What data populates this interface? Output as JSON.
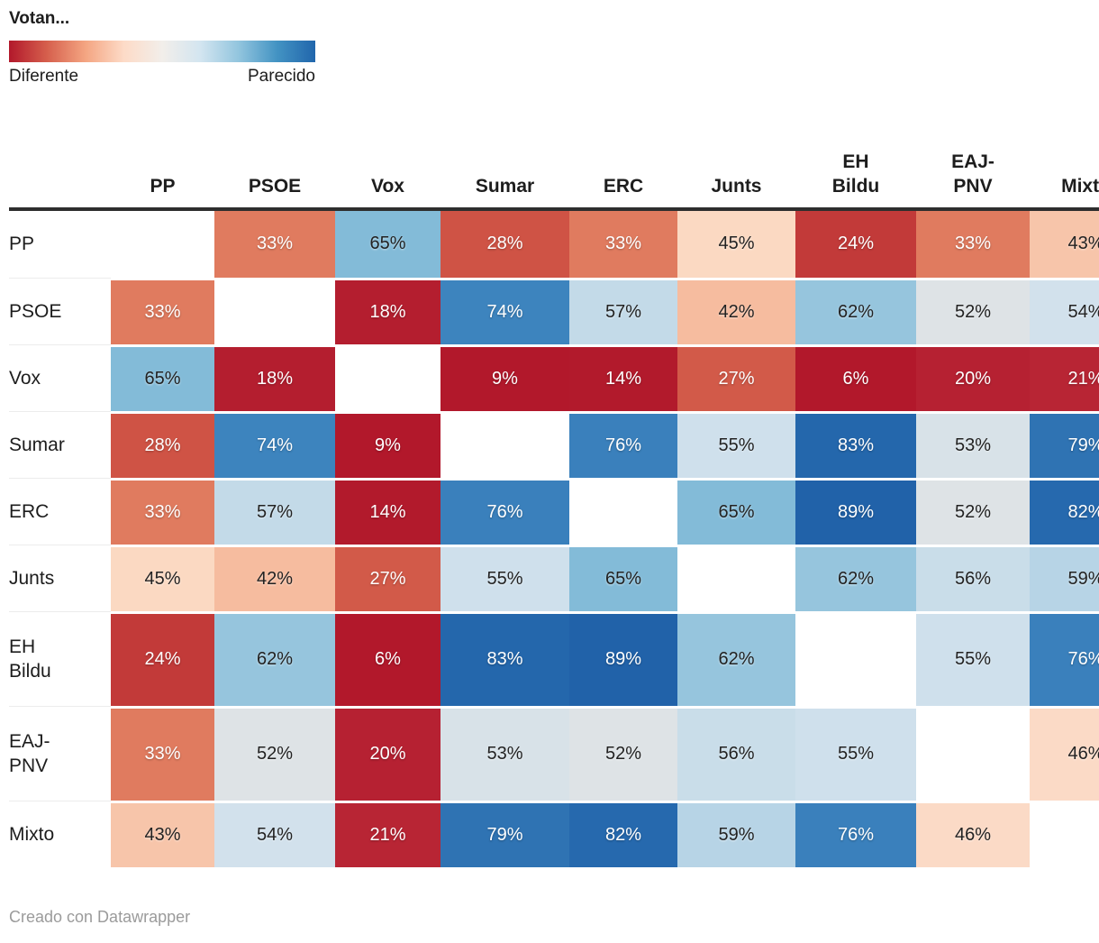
{
  "legend": {
    "title": "Votan...",
    "left_label": "Diferente",
    "right_label": "Parecido"
  },
  "table_display": {
    "columns": [
      "PP",
      "PSOE",
      "Vox",
      "Sumar",
      "ERC",
      "Junts",
      "EH\nBildu",
      "EAJ-\nPNV",
      "Mixto"
    ],
    "row_labels": [
      "PP",
      "PSOE",
      "Vox",
      "Sumar",
      "ERC",
      "Junts",
      "EH\nBildu",
      "EAJ-\nPNV",
      "Mixto"
    ]
  },
  "footer": {
    "credit": "Creado con Datawrapper"
  },
  "chart_data": {
    "type": "heatmap",
    "title": "Votan...",
    "unit": "%",
    "categories": [
      "PP",
      "PSOE",
      "Vox",
      "Sumar",
      "ERC",
      "Junts",
      "EH Bildu",
      "EAJ-PNV",
      "Mixto"
    ],
    "matrix": [
      [
        null,
        33,
        65,
        28,
        33,
        45,
        24,
        33,
        43
      ],
      [
        33,
        null,
        18,
        74,
        57,
        42,
        62,
        52,
        54
      ],
      [
        65,
        18,
        null,
        9,
        14,
        27,
        6,
        20,
        21
      ],
      [
        28,
        74,
        9,
        null,
        76,
        55,
        83,
        53,
        79
      ],
      [
        33,
        57,
        14,
        76,
        null,
        65,
        89,
        52,
        82
      ],
      [
        45,
        42,
        27,
        55,
        65,
        null,
        62,
        56,
        59
      ],
      [
        24,
        62,
        6,
        83,
        89,
        62,
        null,
        55,
        76
      ],
      [
        33,
        52,
        20,
        53,
        52,
        56,
        55,
        null,
        46
      ],
      [
        43,
        54,
        21,
        79,
        82,
        59,
        76,
        46,
        null
      ]
    ],
    "diagonal": "empty",
    "legend": {
      "style": "continuous-gradient",
      "orientation": "horizontal",
      "min_label": "Diferente",
      "max_label": "Parecido"
    },
    "color_scale": {
      "palette": "RdBu diverging (red = diferente, blue = parecido)",
      "gradient_stops": [
        "#b2182b",
        "#d6604d",
        "#f4a582",
        "#fddbc7",
        "#f2eeea",
        "#d3e5f0",
        "#92c5de",
        "#4393c3",
        "#2166ac"
      ],
      "value_colors": {
        "6": "#b2182b",
        "9": "#b2182b",
        "14": "#b21a2c",
        "18": "#b41e2f",
        "20": "#b62132",
        "21": "#b82534",
        "24": "#c23a39",
        "27": "#d25a49",
        "28": "#cf5345",
        "33": "#e07b5f",
        "42": "#f6bc9f",
        "43": "#f7c5aa",
        "45": "#fbd9c2",
        "46": "#fbdac6",
        "52": "#dee3e6",
        "53": "#d8e2e8",
        "54": "#d2e1ec",
        "55": "#cfe0ec",
        "56": "#c9dde9",
        "57": "#c3dae8",
        "59": "#b7d4e6",
        "62": "#96c5dd",
        "65": "#83bbd8",
        "74": "#3d84be",
        "76": "#3a80bc",
        "79": "#2f73b3",
        "82": "#2669ae",
        "83": "#2467ac",
        "89": "#2162a9"
      }
    }
  }
}
